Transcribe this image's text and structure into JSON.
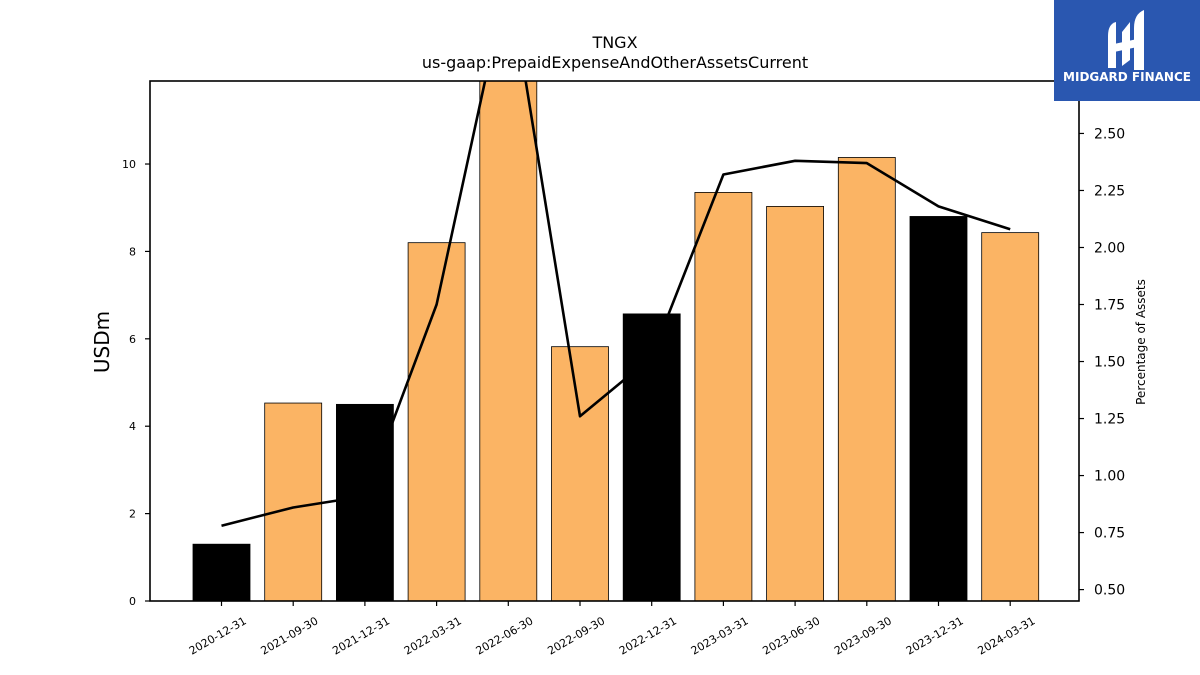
{
  "brand": {
    "name": "MIDGARD FINANCE",
    "bg_color": "#2a57b0"
  },
  "chart_data": {
    "type": "bar",
    "title": "TNGX",
    "subtitle": "us-gaap:PrepaidExpenseAndOtherAssetsCurrent",
    "ylabel": "USDm",
    "y2label": "Percentage of Assets",
    "categories": [
      "2020-12-31",
      "2021-09-30",
      "2021-12-31",
      "2022-03-31",
      "2022-06-30",
      "2022-09-30",
      "2022-12-31",
      "2023-03-31",
      "2023-06-30",
      "2023-09-30",
      "2023-12-31",
      "2024-03-31"
    ],
    "series": [
      {
        "type": "bar",
        "values": [
          1.3,
          4.53,
          4.5,
          8.2,
          11.95,
          5.82,
          6.57,
          9.35,
          9.03,
          10.15,
          8.8,
          8.43
        ],
        "colors": [
          "#000000",
          "#fbb464",
          "#000000",
          "#fbb464",
          "#fbb464",
          "#fbb464",
          "#000000",
          "#fbb464",
          "#fbb464",
          "#fbb464",
          "#000000",
          "#fbb464"
        ],
        "axis": "left"
      },
      {
        "type": "line",
        "values": [
          0.78,
          0.86,
          0.91,
          1.75,
          3.2,
          1.26,
          1.52,
          2.32,
          2.38,
          2.37,
          2.18,
          2.08
        ],
        "color": "#000000",
        "axis": "right"
      }
    ],
    "ylim": [
      0,
      11.9
    ],
    "y2lim": [
      0.45,
      2.73
    ],
    "yticks": [
      0,
      2,
      4,
      6,
      8,
      10
    ],
    "y2ticks": [
      "0.50",
      "0.75",
      "1.00",
      "1.25",
      "1.50",
      "1.75",
      "2.00",
      "2.25",
      "2.50"
    ],
    "grid": false,
    "legend": "none"
  }
}
